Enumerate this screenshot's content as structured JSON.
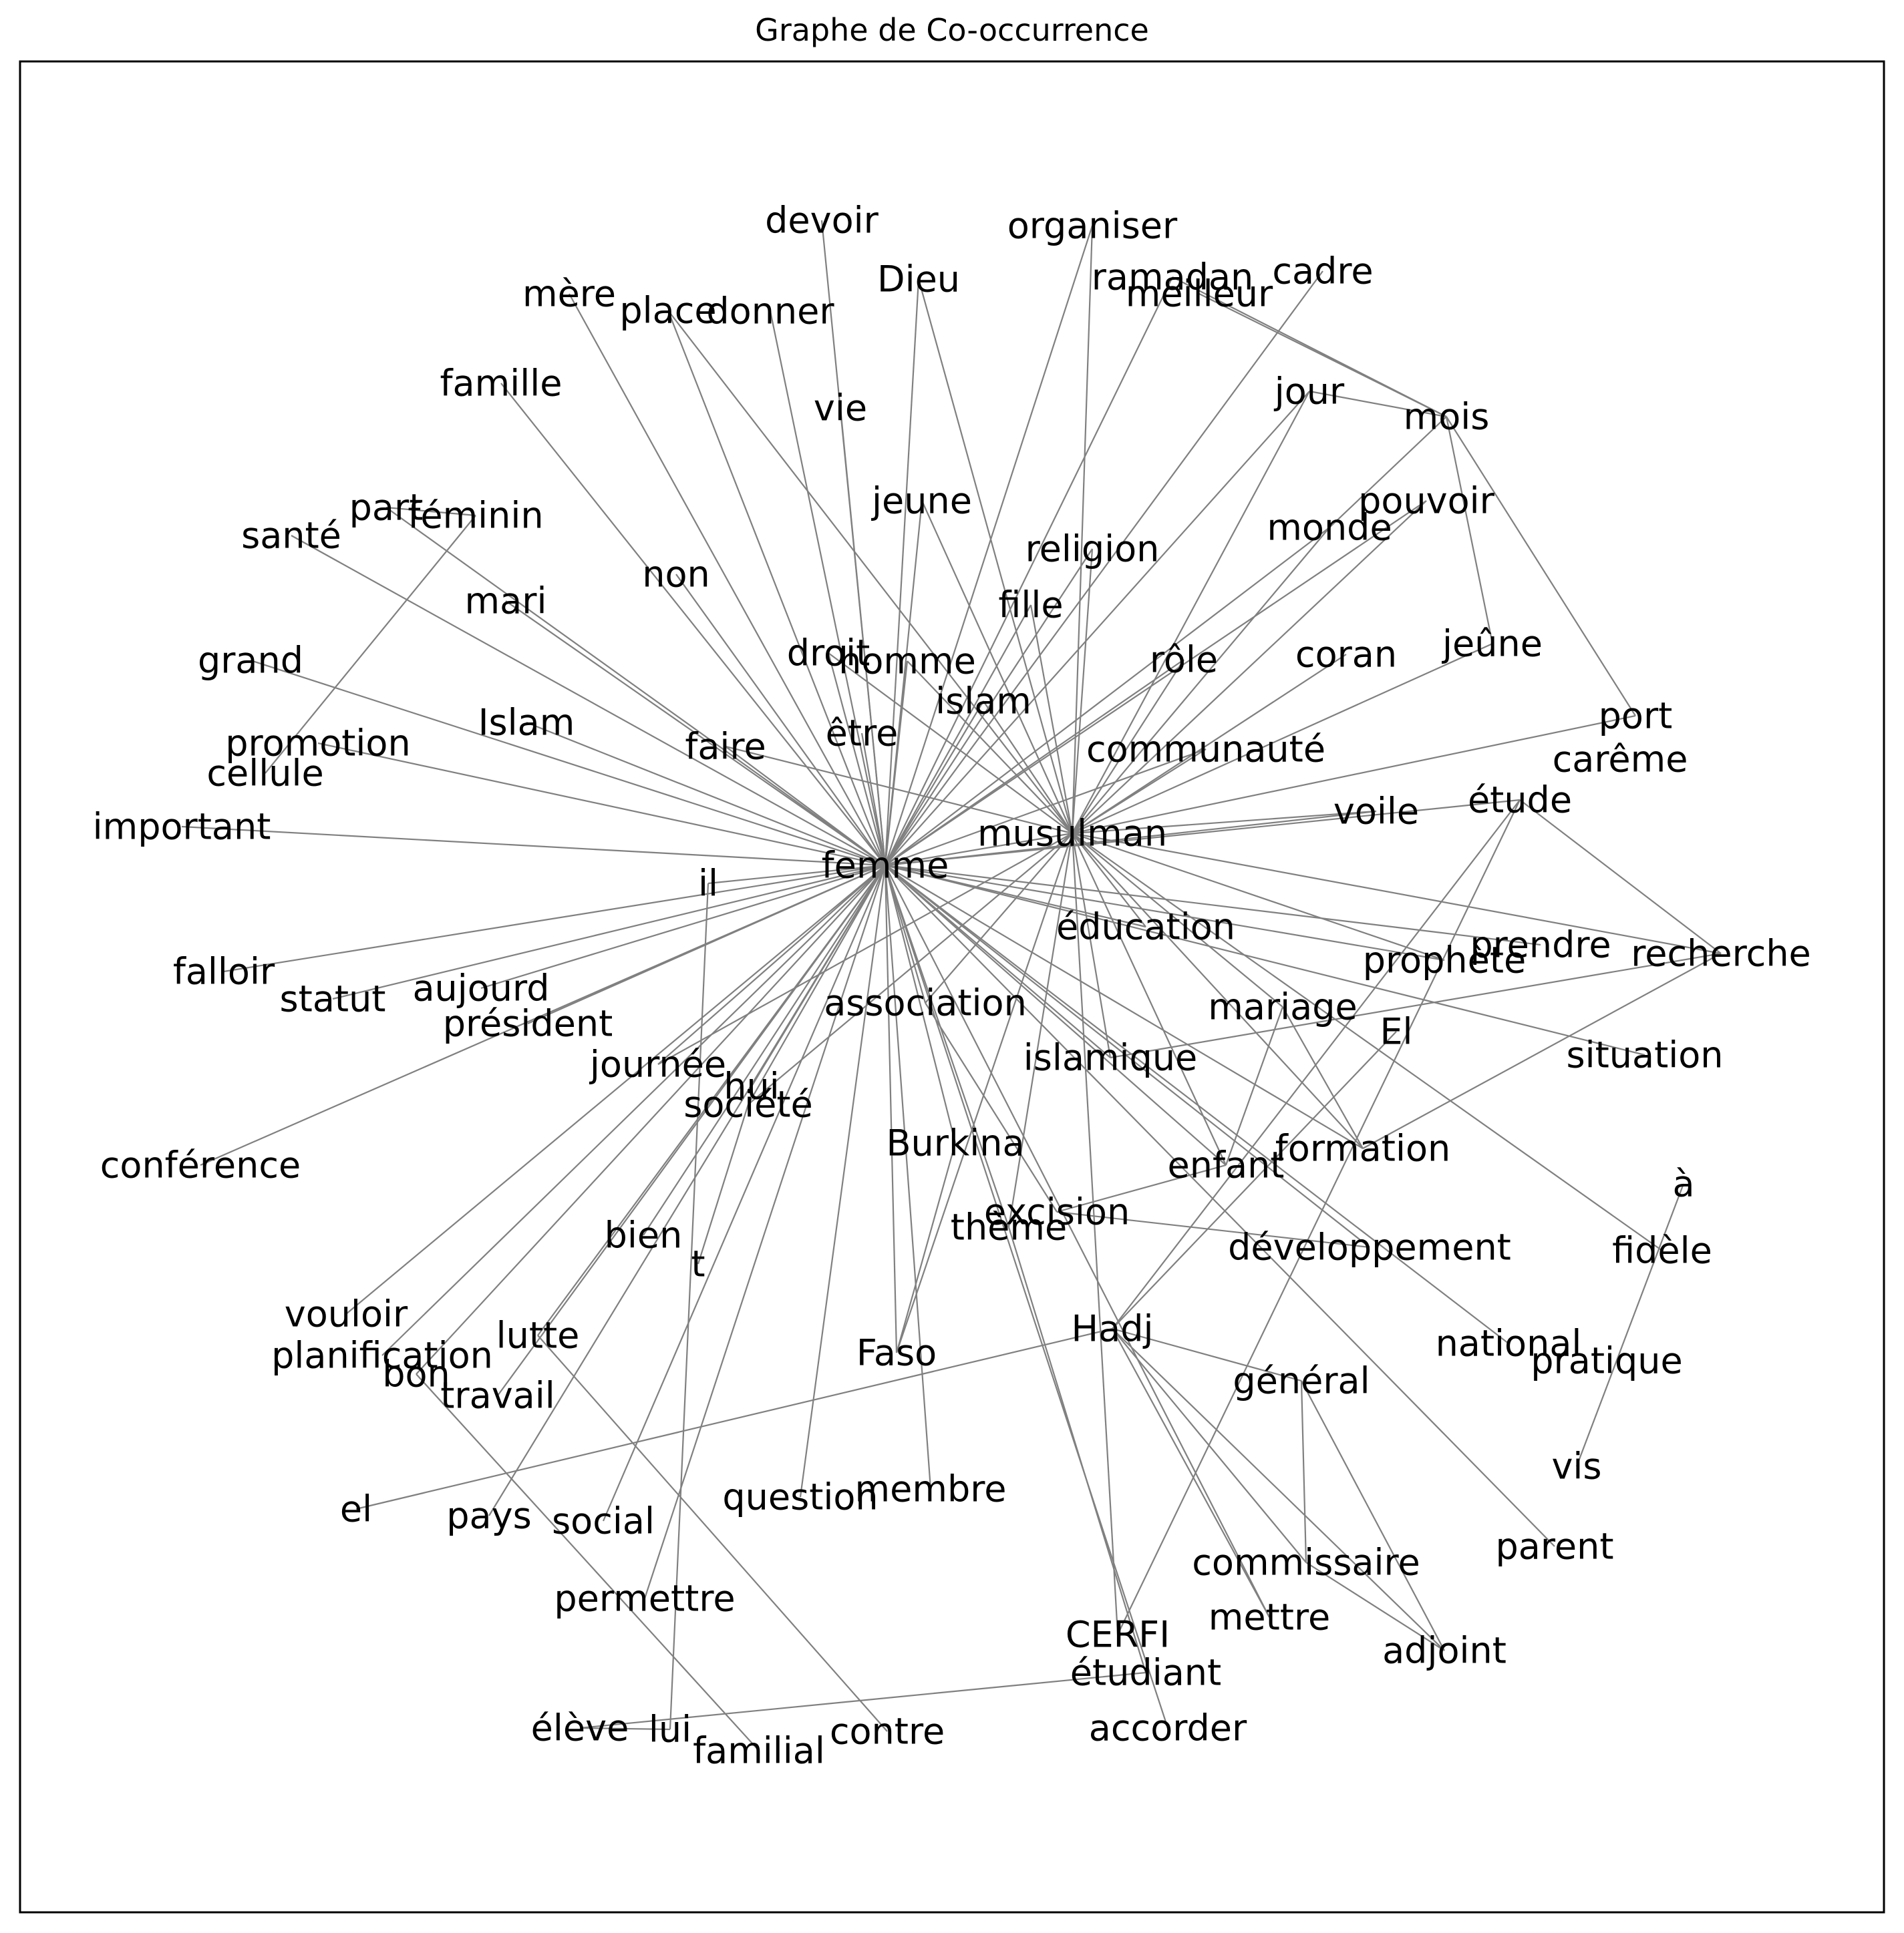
{
  "title": "Graphe de Co-occurrence",
  "style": {
    "edge_color": "#808080",
    "label_color": "#000000",
    "frame_color": "#000000"
  },
  "graph": {
    "nodes": [
      {
        "id": "femme",
        "label": "femme"
      },
      {
        "id": "musulman",
        "label": "musulman"
      },
      {
        "id": "devoir",
        "label": "devoir"
      },
      {
        "id": "organiser",
        "label": "organiser"
      },
      {
        "id": "Dieu",
        "label": "Dieu"
      },
      {
        "id": "ramadan",
        "label": "ramadan"
      },
      {
        "id": "meilleur",
        "label": "meilleur"
      },
      {
        "id": "cadre",
        "label": "cadre"
      },
      {
        "id": "mère",
        "label": "mère"
      },
      {
        "id": "place",
        "label": "place"
      },
      {
        "id": "donner",
        "label": "donner"
      },
      {
        "id": "famille",
        "label": "famille"
      },
      {
        "id": "vie",
        "label": "vie"
      },
      {
        "id": "jour",
        "label": "jour"
      },
      {
        "id": "mois",
        "label": "mois"
      },
      {
        "id": "jeune",
        "label": "jeune"
      },
      {
        "id": "pouvoir",
        "label": "pouvoir"
      },
      {
        "id": "monde",
        "label": "monde"
      },
      {
        "id": "part",
        "label": "part"
      },
      {
        "id": "féminin",
        "label": "féminin"
      },
      {
        "id": "santé",
        "label": "santé"
      },
      {
        "id": "religion",
        "label": "religion"
      },
      {
        "id": "non",
        "label": "non"
      },
      {
        "id": "mari",
        "label": "mari"
      },
      {
        "id": "fille",
        "label": "fille"
      },
      {
        "id": "jeûne",
        "label": "jeûne"
      },
      {
        "id": "droit",
        "label": "droit"
      },
      {
        "id": "homme",
        "label": "homme"
      },
      {
        "id": "rôle",
        "label": "rôle"
      },
      {
        "id": "coran",
        "label": "coran"
      },
      {
        "id": "grand",
        "label": "grand"
      },
      {
        "id": "islam",
        "label": "islam"
      },
      {
        "id": "Islam",
        "label": "Islam"
      },
      {
        "id": "port",
        "label": "port"
      },
      {
        "id": "carême",
        "label": "carême"
      },
      {
        "id": "promotion",
        "label": "promotion"
      },
      {
        "id": "faire",
        "label": "faire"
      },
      {
        "id": "être",
        "label": "être"
      },
      {
        "id": "communauté",
        "label": "communauté"
      },
      {
        "id": "cellule",
        "label": "cellule"
      },
      {
        "id": "important",
        "label": "important"
      },
      {
        "id": "étude",
        "label": "étude"
      },
      {
        "id": "voile",
        "label": "voile"
      },
      {
        "id": "il",
        "label": "il"
      },
      {
        "id": "éducation",
        "label": "éducation"
      },
      {
        "id": "prendre",
        "label": "prendre"
      },
      {
        "id": "prophète",
        "label": "prophète"
      },
      {
        "id": "recherche",
        "label": "recherche"
      },
      {
        "id": "falloir",
        "label": "falloir"
      },
      {
        "id": "aujourd",
        "label": "aujourd"
      },
      {
        "id": "statut",
        "label": "statut"
      },
      {
        "id": "président",
        "label": "président"
      },
      {
        "id": "association",
        "label": "association"
      },
      {
        "id": "mariage",
        "label": "mariage"
      },
      {
        "id": "El",
        "label": "El"
      },
      {
        "id": "journée",
        "label": "journée"
      },
      {
        "id": "hui",
        "label": "hui"
      },
      {
        "id": "islamique",
        "label": "islamique"
      },
      {
        "id": "situation",
        "label": "situation"
      },
      {
        "id": "société",
        "label": "société"
      },
      {
        "id": "conférence",
        "label": "conférence"
      },
      {
        "id": "Burkina",
        "label": "Burkina"
      },
      {
        "id": "formation",
        "label": "formation"
      },
      {
        "id": "enfant",
        "label": "enfant"
      },
      {
        "id": "à",
        "label": "à"
      },
      {
        "id": "excision",
        "label": "excision"
      },
      {
        "id": "thème",
        "label": "thème"
      },
      {
        "id": "bien",
        "label": "bien"
      },
      {
        "id": "t",
        "label": "t"
      },
      {
        "id": "développement",
        "label": "développement"
      },
      {
        "id": "fidèle",
        "label": "fidèle"
      },
      {
        "id": "vouloir",
        "label": "vouloir"
      },
      {
        "id": "lutte",
        "label": "lutte"
      },
      {
        "id": "planification",
        "label": "planification"
      },
      {
        "id": "Hadj",
        "label": "Hadj"
      },
      {
        "id": "Faso",
        "label": "Faso"
      },
      {
        "id": "national",
        "label": "national"
      },
      {
        "id": "bon",
        "label": "bon"
      },
      {
        "id": "pratique",
        "label": "pratique"
      },
      {
        "id": "travail",
        "label": "travail"
      },
      {
        "id": "général",
        "label": "général"
      },
      {
        "id": "vis",
        "label": "vis"
      },
      {
        "id": "el",
        "label": "el"
      },
      {
        "id": "membre",
        "label": "membre"
      },
      {
        "id": "question",
        "label": "question"
      },
      {
        "id": "pays",
        "label": "pays"
      },
      {
        "id": "social",
        "label": "social"
      },
      {
        "id": "parent",
        "label": "parent"
      },
      {
        "id": "commissaire",
        "label": "commissaire"
      },
      {
        "id": "permettre",
        "label": "permettre"
      },
      {
        "id": "mettre",
        "label": "mettre"
      },
      {
        "id": "CERFI",
        "label": "CERFI"
      },
      {
        "id": "adjoint",
        "label": "adjoint"
      },
      {
        "id": "étudiant",
        "label": "étudiant"
      },
      {
        "id": "élève",
        "label": "élève"
      },
      {
        "id": "lui",
        "label": "lui"
      },
      {
        "id": "contre",
        "label": "contre"
      },
      {
        "id": "accorder",
        "label": "accorder"
      },
      {
        "id": "familial",
        "label": "familial"
      }
    ],
    "edges": [
      [
        "femme",
        "devoir"
      ],
      [
        "femme",
        "organiser"
      ],
      [
        "femme",
        "Dieu"
      ],
      [
        "femme",
        "ramadan"
      ],
      [
        "femme",
        "cadre"
      ],
      [
        "femme",
        "mère"
      ],
      [
        "femme",
        "place"
      ],
      [
        "femme",
        "donner"
      ],
      [
        "femme",
        "famille"
      ],
      [
        "femme",
        "vie"
      ],
      [
        "femme",
        "jour"
      ],
      [
        "femme",
        "jeune"
      ],
      [
        "femme",
        "pouvoir"
      ],
      [
        "femme",
        "monde"
      ],
      [
        "femme",
        "part"
      ],
      [
        "femme",
        "santé"
      ],
      [
        "femme",
        "religion"
      ],
      [
        "femme",
        "non"
      ],
      [
        "femme",
        "mari"
      ],
      [
        "femme",
        "fille"
      ],
      [
        "femme",
        "droit"
      ],
      [
        "femme",
        "homme"
      ],
      [
        "femme",
        "rôle"
      ],
      [
        "femme",
        "grand"
      ],
      [
        "femme",
        "islam"
      ],
      [
        "femme",
        "Islam"
      ],
      [
        "femme",
        "promotion"
      ],
      [
        "femme",
        "faire"
      ],
      [
        "femme",
        "être"
      ],
      [
        "femme",
        "communauté"
      ],
      [
        "femme",
        "important"
      ],
      [
        "femme",
        "étude"
      ],
      [
        "femme",
        "voile"
      ],
      [
        "femme",
        "il"
      ],
      [
        "femme",
        "éducation"
      ],
      [
        "femme",
        "prendre"
      ],
      [
        "femme",
        "prophète"
      ],
      [
        "femme",
        "falloir"
      ],
      [
        "femme",
        "aujourd"
      ],
      [
        "femme",
        "statut"
      ],
      [
        "femme",
        "président"
      ],
      [
        "femme",
        "association"
      ],
      [
        "femme",
        "journée"
      ],
      [
        "femme",
        "hui"
      ],
      [
        "femme",
        "islamique"
      ],
      [
        "femme",
        "situation"
      ],
      [
        "femme",
        "société"
      ],
      [
        "femme",
        "conférence"
      ],
      [
        "femme",
        "Burkina"
      ],
      [
        "femme",
        "formation"
      ],
      [
        "femme",
        "enfant"
      ],
      [
        "femme",
        "thème"
      ],
      [
        "femme",
        "bien"
      ],
      [
        "femme",
        "développement"
      ],
      [
        "femme",
        "vouloir"
      ],
      [
        "femme",
        "lutte"
      ],
      [
        "femme",
        "planification"
      ],
      [
        "femme",
        "Faso"
      ],
      [
        "femme",
        "national"
      ],
      [
        "femme",
        "bon"
      ],
      [
        "femme",
        "travail"
      ],
      [
        "femme",
        "membre"
      ],
      [
        "femme",
        "question"
      ],
      [
        "femme",
        "pays"
      ],
      [
        "femme",
        "social"
      ],
      [
        "femme",
        "permettre"
      ],
      [
        "femme",
        "parent"
      ],
      [
        "femme",
        "accorder"
      ],
      [
        "femme",
        "mettre"
      ],
      [
        "femme",
        "musulman"
      ],
      [
        "musulman",
        "organiser"
      ],
      [
        "musulman",
        "Dieu"
      ],
      [
        "musulman",
        "place"
      ],
      [
        "musulman",
        "jour"
      ],
      [
        "musulman",
        "pouvoir"
      ],
      [
        "musulman",
        "monde"
      ],
      [
        "musulman",
        "jeune"
      ],
      [
        "musulman",
        "religion"
      ],
      [
        "musulman",
        "fille"
      ],
      [
        "musulman",
        "homme"
      ],
      [
        "musulman",
        "rôle"
      ],
      [
        "musulman",
        "coran"
      ],
      [
        "musulman",
        "jeûne"
      ],
      [
        "musulman",
        "islam"
      ],
      [
        "musulman",
        "communauté"
      ],
      [
        "musulman",
        "port"
      ],
      [
        "musulman",
        "voile"
      ],
      [
        "musulman",
        "recherche"
      ],
      [
        "musulman",
        "éducation"
      ],
      [
        "musulman",
        "prophète"
      ],
      [
        "musulman",
        "mariage"
      ],
      [
        "musulman",
        "enfant"
      ],
      [
        "musulman",
        "islamique"
      ],
      [
        "musulman",
        "association"
      ],
      [
        "musulman",
        "société"
      ],
      [
        "musulman",
        "journée"
      ],
      [
        "musulman",
        "formation"
      ],
      [
        "musulman",
        "Faso"
      ],
      [
        "musulman",
        "thème"
      ],
      [
        "musulman",
        "CERFI"
      ],
      [
        "musulman",
        "fidèle"
      ],
      [
        "musulman",
        "faire"
      ],
      [
        "musulman",
        "droit"
      ],
      [
        "ramadan",
        "mois"
      ],
      [
        "meilleur",
        "mois"
      ],
      [
        "jour",
        "mois"
      ],
      [
        "mois",
        "jeûne"
      ],
      [
        "mois",
        "port"
      ],
      [
        "mois",
        "monde"
      ],
      [
        "féminin",
        "cellule"
      ],
      [
        "part",
        "féminin"
      ],
      [
        "islamique",
        "recherche"
      ],
      [
        "Hadj",
        "el"
      ],
      [
        "Hadj",
        "commissaire"
      ],
      [
        "Hadj",
        "adjoint"
      ],
      [
        "Hadj",
        "général"
      ],
      [
        "Hadj",
        "mettre"
      ],
      [
        "général",
        "commissaire"
      ],
      [
        "général",
        "adjoint"
      ],
      [
        "commissaire",
        "adjoint"
      ],
      [
        "étude",
        "Hadj"
      ],
      [
        "étude",
        "CERFI"
      ],
      [
        "étude",
        "recherche"
      ],
      [
        "formation",
        "recherche"
      ],
      [
        "formation",
        "mariage"
      ],
      [
        "excision",
        "enfant"
      ],
      [
        "excision",
        "développement"
      ],
      [
        "il",
        "lui"
      ],
      [
        "t",
        "société"
      ],
      [
        "élève",
        "étudiant"
      ],
      [
        "élève",
        "lui"
      ],
      [
        "bon",
        "familial"
      ],
      [
        "lutte",
        "contre"
      ],
      [
        "à",
        "vis"
      ],
      [
        "thème",
        "étudiant"
      ],
      [
        "Burkina",
        "Faso"
      ],
      [
        "El",
        "Hadj"
      ],
      [
        "mariage",
        "enfant"
      ],
      [
        "association",
        "excision"
      ]
    ]
  }
}
